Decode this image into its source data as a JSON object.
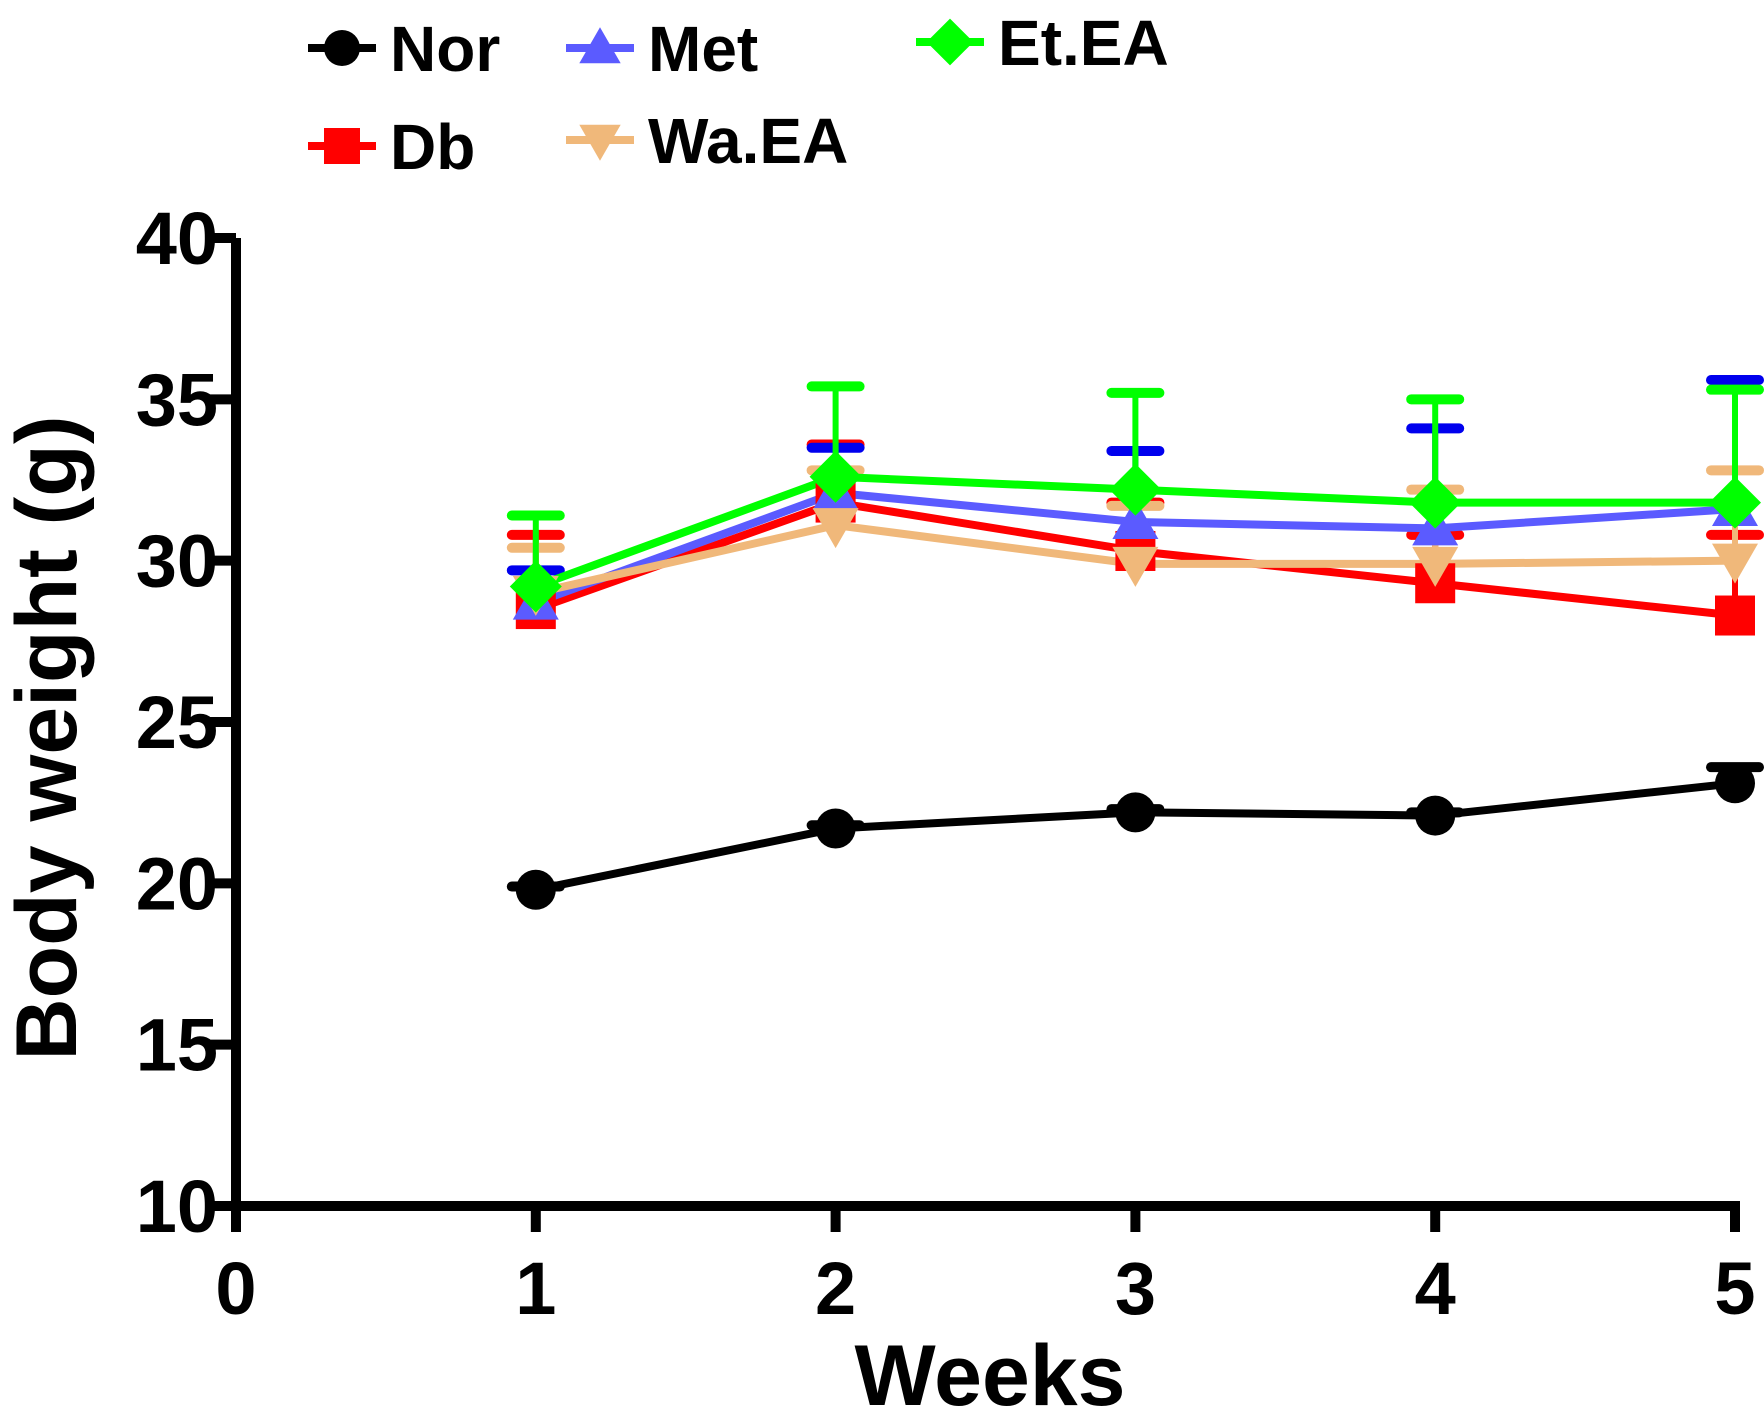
{
  "chart_data": {
    "type": "line",
    "title": "",
    "xlabel": "Weeks",
    "ylabel": "Body weight (g)",
    "xlim": [
      0,
      5
    ],
    "ylim": [
      10,
      40
    ],
    "x_ticks": [
      "0",
      "1",
      "2",
      "3",
      "4",
      "5"
    ],
    "y_ticks": [
      "10",
      "15",
      "20",
      "25",
      "30",
      "35",
      "40"
    ],
    "x": [
      1,
      2,
      3,
      4,
      5
    ],
    "grid": false,
    "legend_position": "top",
    "series": [
      {
        "name": "Nor",
        "color": "#000000",
        "marker": "circle",
        "values": [
          19.8,
          21.7,
          22.2,
          22.1,
          23.1
        ],
        "error": [
          0.1,
          0.1,
          0.1,
          0.1,
          0.5
        ]
      },
      {
        "name": "Db",
        "color": "#ff0000",
        "marker": "square",
        "values": [
          28.5,
          31.8,
          30.3,
          29.3,
          28.3
        ],
        "error": [
          2.3,
          1.8,
          1.5,
          1.5,
          2.5
        ]
      },
      {
        "name": "Met",
        "color": "#5b5bff",
        "marker": "triangle-up",
        "error_color": "#0000ee",
        "values": [
          28.7,
          32.1,
          31.2,
          31.0,
          31.6
        ],
        "error": [
          1.0,
          1.4,
          2.2,
          3.1,
          4.0
        ]
      },
      {
        "name": "Wa.EA",
        "color": "#f0b87a",
        "marker": "triangle-down",
        "values": [
          29.0,
          31.1,
          29.9,
          29.9,
          30.0
        ],
        "error": [
          1.4,
          1.7,
          1.8,
          2.3,
          2.8
        ]
      },
      {
        "name": "Et.EA",
        "color": "#00ff00",
        "marker": "diamond",
        "values": [
          29.2,
          32.6,
          32.2,
          31.8,
          31.8
        ],
        "error": [
          2.2,
          2.8,
          3.0,
          3.2,
          3.5
        ]
      }
    ]
  }
}
